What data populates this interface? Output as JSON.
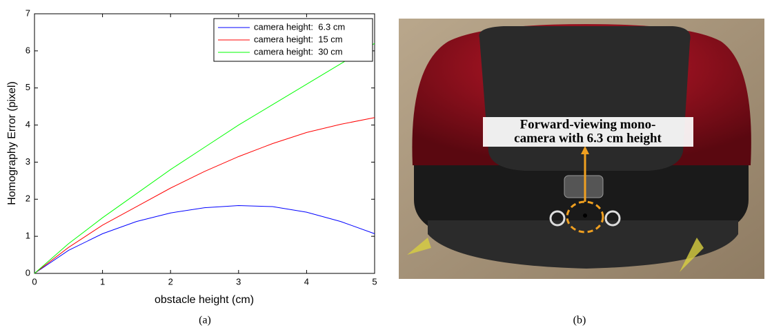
{
  "chart_data": {
    "type": "line",
    "x_label": "obstacle height (cm)",
    "y_label": "Homography Error (pixel)",
    "x": [
      0,
      0.5,
      1,
      1.5,
      2,
      2.5,
      3,
      3.5,
      4,
      4.5,
      5
    ],
    "series": [
      {
        "name": "camera height:  6.3 cm",
        "color": "#0000ff",
        "values": [
          0,
          0.62,
          1.07,
          1.4,
          1.63,
          1.77,
          1.83,
          1.8,
          1.65,
          1.4,
          1.07
        ]
      },
      {
        "name": "camera height:  15 cm",
        "color": "#ff0000",
        "values": [
          0,
          0.7,
          1.3,
          1.8,
          2.3,
          2.75,
          3.15,
          3.5,
          3.8,
          4.02,
          4.2
        ]
      },
      {
        "name": "camera height:  30 cm",
        "color": "#00ff00",
        "values": [
          0,
          0.8,
          1.5,
          2.15,
          2.8,
          3.4,
          4.0,
          4.55,
          5.1,
          5.65,
          6.2
        ]
      }
    ],
    "xlim": [
      0,
      5
    ],
    "ylim": [
      0,
      7
    ],
    "xticks": [
      0,
      1,
      2,
      3,
      4,
      5
    ],
    "yticks": [
      0,
      1,
      2,
      3,
      4,
      5,
      6,
      7
    ],
    "legend": "upper right",
    "grid": false
  },
  "captions": [
    "(a)",
    "(b)"
  ],
  "photo": {
    "annotation_lines": [
      "Forward-viewing mono-",
      "camera with 6.3 cm height"
    ]
  }
}
